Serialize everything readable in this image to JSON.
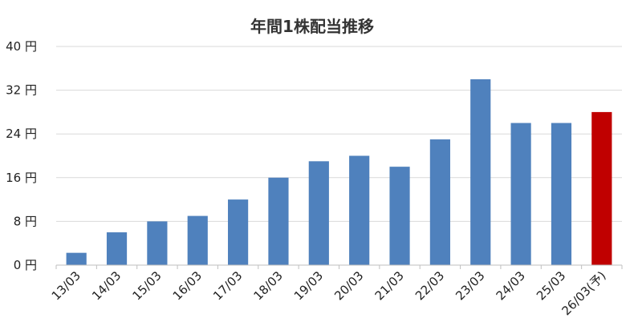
{
  "chart_data": {
    "type": "bar",
    "title": "年間1株配当推移",
    "xlabel": "",
    "ylabel": "",
    "categories": [
      "13/03",
      "14/03",
      "15/03",
      "16/03",
      "17/03",
      "18/03",
      "19/03",
      "20/03",
      "21/03",
      "22/03",
      "23/03",
      "24/03",
      "25/03",
      "26/03(予)"
    ],
    "values": [
      2.25,
      6,
      8,
      9,
      12,
      16,
      19,
      20,
      18,
      23,
      34,
      26,
      26,
      28
    ],
    "ylim": [
      0,
      40
    ],
    "yticks": [
      0,
      8,
      16,
      24,
      32,
      40
    ],
    "ytick_labels": [
      "0 円",
      "8 円",
      "16 円",
      "24 円",
      "32 円",
      "40 円"
    ],
    "grid": true,
    "bar_color": "#4f81bd",
    "highlight_color": "#c00000",
    "highlight_index": 13
  }
}
